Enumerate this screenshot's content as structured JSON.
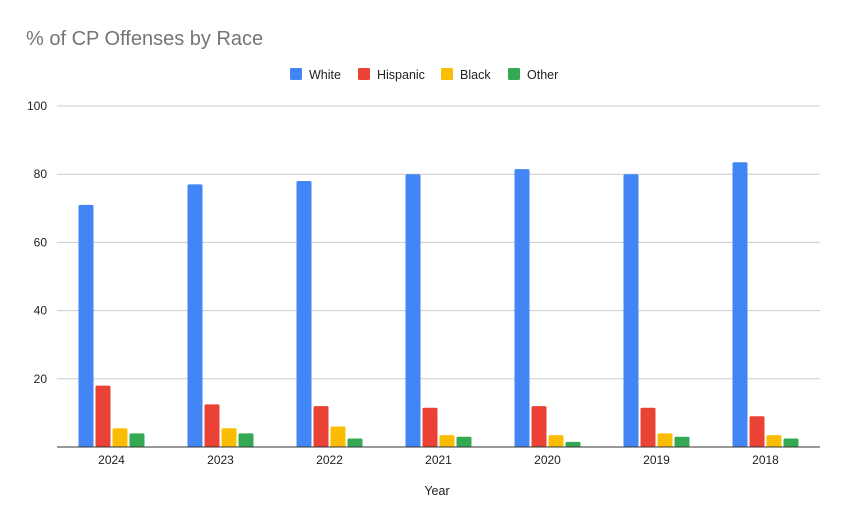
{
  "chart_data": {
    "type": "bar",
    "title": "% of CP Offenses by Race",
    "xlabel": "Year",
    "ylabel": "",
    "categories": [
      "2024",
      "2023",
      "2022",
      "2021",
      "2020",
      "2019",
      "2018"
    ],
    "series": [
      {
        "name": "White",
        "color": "#4285f4",
        "values": [
          71,
          77,
          78,
          80,
          81.5,
          80,
          83.5
        ]
      },
      {
        "name": "Hispanic",
        "color": "#ea4335",
        "values": [
          18,
          12.5,
          12,
          11.5,
          12,
          11.5,
          9
        ]
      },
      {
        "name": "Black",
        "color": "#fbbc04",
        "values": [
          5.5,
          5.5,
          6,
          3.5,
          3.5,
          4,
          3.5
        ]
      },
      {
        "name": "Other",
        "color": "#34a853",
        "values": [
          4,
          4,
          2.5,
          3,
          1.5,
          3,
          2.5
        ]
      }
    ],
    "ylim": [
      0,
      100
    ],
    "yticks": [
      20,
      40,
      60,
      80,
      100
    ],
    "grid": true,
    "legend": "top-center"
  }
}
